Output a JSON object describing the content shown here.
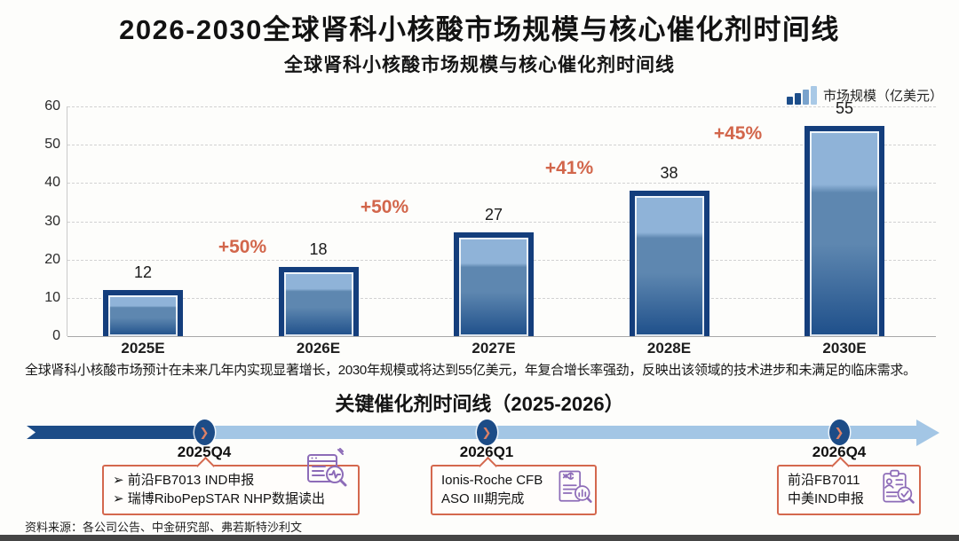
{
  "page": {
    "title": "2026-2030全球肾科小核酸市场规模与核心催化剂时间线",
    "description": "全球肾科小核酸市场预计在未来几年内实现显著增长，2030年规模或将达到55亿美元，年复合增长率强劲，反映出该领域的技术进步和未满足的临床需求。",
    "source_note": "资料来源：各公司公告、中金研究部、弗若斯特沙利文"
  },
  "chart_data": {
    "type": "bar",
    "title": "全球肾科小核酸市场规模与核心催化剂时间线",
    "legend": {
      "label": "市场规模（亿美元）",
      "position": "top-right"
    },
    "categories": [
      "2025E",
      "2026E",
      "2027E",
      "2028E",
      "2030E"
    ],
    "values": [
      12,
      18,
      27,
      38,
      55
    ],
    "growth_labels": [
      "+50%",
      "+50%",
      "+41%",
      "+45%"
    ],
    "xlabel": "",
    "ylabel": "",
    "ylim": [
      0,
      60
    ],
    "yticks": [
      0,
      10,
      20,
      30,
      40,
      50,
      60
    ],
    "grid": "horizontal-dashed",
    "colors": {
      "bar_border": "#143e7c",
      "bar_top": "#8fb3d8",
      "bar_mid": "#5e87b0",
      "bar_bottom": "#1e4f8a",
      "growth_label": "#d2664b",
      "legend_swatch": [
        "#1d4e8a",
        "#1d4e8a",
        "#7aa3cc",
        "#a9c9e6"
      ]
    }
  },
  "timeline": {
    "title": "关键催化剂时间线（2025-2026）",
    "colors": {
      "arrow_dark": "#1c4c87",
      "arrow_light": "#a3c6e5",
      "marker_fill": "#1c4c87",
      "marker_chevron": "#dd8166",
      "callout_border": "#d4684e",
      "icon": "#8d6cb8"
    },
    "milestones": [
      {
        "label": "2025Q4",
        "bullet": "➢",
        "items": [
          "前沿FB7013 IND申报",
          "瑞博RiboPepSTAR NHP数据读出"
        ],
        "icon": "report-magnifier-icon"
      },
      {
        "label": "2026Q1",
        "bullet": "",
        "items": [
          "Ionis-Roche CFB",
          "ASO III期完成"
        ],
        "icon": "dna-report-icon"
      },
      {
        "label": "2026Q4",
        "bullet": "",
        "items": [
          "前沿FB7011",
          "中美IND申报"
        ],
        "icon": "clipboard-check-icon"
      }
    ]
  }
}
